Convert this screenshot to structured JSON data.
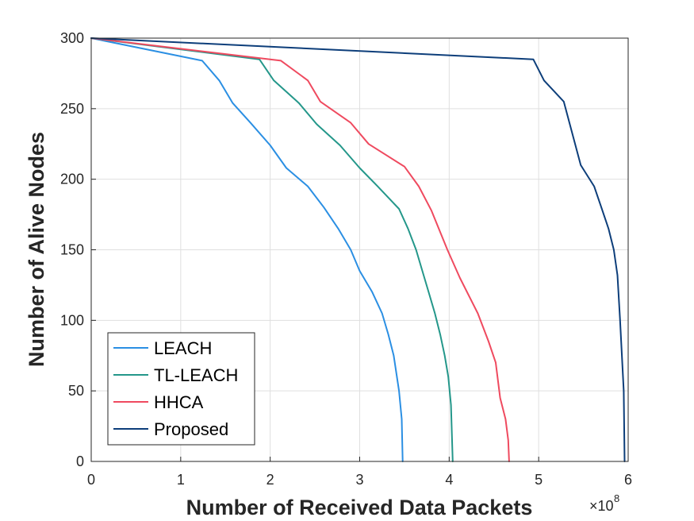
{
  "chart_data": {
    "type": "line",
    "xlabel": "Number of Received Data Packets",
    "ylabel": "Number of Alive Nodes",
    "x_exponent_base": "×10",
    "x_exponent_power": "8",
    "xlim": [
      0,
      6
    ],
    "ylim": [
      0,
      300
    ],
    "xticks": [
      0,
      1,
      2,
      3,
      4,
      5,
      6
    ],
    "xtick_labels": [
      "0",
      "1",
      "2",
      "3",
      "4",
      "5",
      "6"
    ],
    "yticks": [
      0,
      50,
      100,
      150,
      200,
      250,
      300
    ],
    "ytick_labels": [
      "0",
      "50",
      "100",
      "150",
      "200",
      "250",
      "300"
    ],
    "grid": true,
    "legend_position": "bottom-left",
    "series": [
      {
        "name": "LEACH",
        "color": "#2b8fe3",
        "x": [
          0,
          1.24,
          1.43,
          1.58,
          1.78,
          2.0,
          2.18,
          2.42,
          2.6,
          2.76,
          2.9,
          3.0,
          3.14,
          3.25,
          3.32,
          3.38,
          3.44,
          3.47,
          3.48
        ],
        "y": [
          300,
          284,
          270,
          254,
          240,
          224,
          208,
          195,
          180,
          165,
          150,
          135,
          120,
          105,
          90,
          75,
          50,
          30,
          0
        ]
      },
      {
        "name": "TL-LEACH",
        "color": "#24978a",
        "x": [
          0,
          1.88,
          2.04,
          2.32,
          2.52,
          2.78,
          3.0,
          3.2,
          3.44,
          3.54,
          3.63,
          3.7,
          3.78,
          3.84,
          3.9,
          3.95,
          3.99,
          4.02,
          4.04
        ],
        "y": [
          300,
          285,
          270,
          254,
          239,
          224,
          208,
          195,
          179,
          165,
          150,
          135,
          118,
          105,
          90,
          75,
          60,
          40,
          0
        ]
      },
      {
        "name": "HHCA",
        "color": "#ef4a5f",
        "x": [
          0,
          2.12,
          2.42,
          2.56,
          2.9,
          3.1,
          3.5,
          3.66,
          3.8,
          3.98,
          4.12,
          4.32,
          4.44,
          4.52,
          4.57,
          4.63,
          4.66,
          4.67
        ],
        "y": [
          300,
          284,
          270,
          255,
          240,
          225,
          209,
          195,
          178,
          150,
          130,
          105,
          85,
          70,
          45,
          30,
          15,
          0
        ]
      },
      {
        "name": "Proposed",
        "color": "#0d3e7a",
        "x": [
          0,
          4.94,
          5.06,
          5.28,
          5.47,
          5.62,
          5.7,
          5.78,
          5.84,
          5.88,
          5.91,
          5.93,
          5.95,
          5.96
        ],
        "y": [
          300,
          285,
          270,
          255,
          210,
          195,
          180,
          165,
          150,
          132,
          100,
          75,
          50,
          0
        ]
      }
    ]
  }
}
